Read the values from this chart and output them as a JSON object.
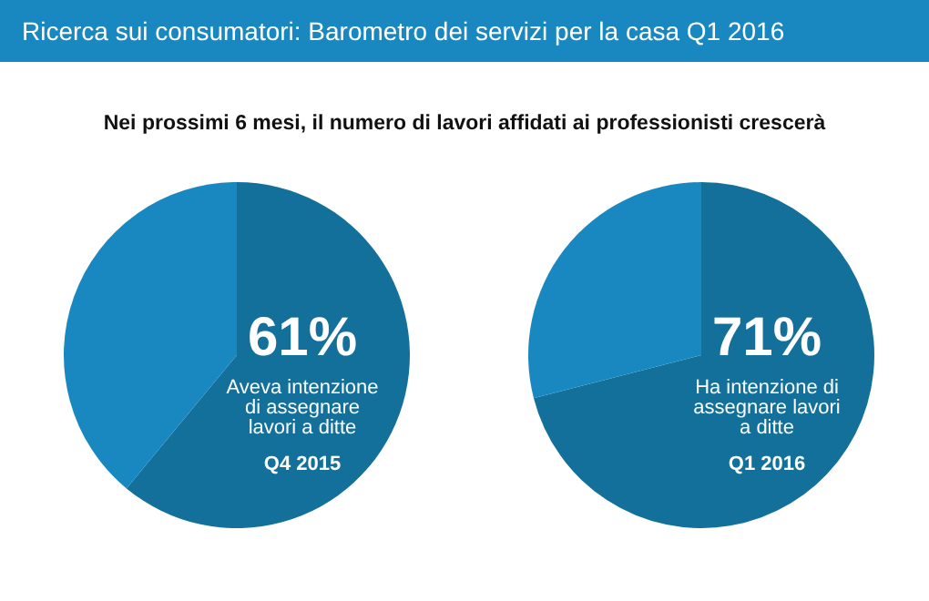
{
  "chart_data": [
    {
      "type": "pie",
      "title": "Ricerca sui consumatori: Barometro dei servizi per la casa Q1 2016",
      "subtitle": "Nei prossimi 6 mesi, il numero di lavori affidati ai professionisti crescerà",
      "categories": [
        null,
        null
      ],
      "values": [
        61,
        39
      ],
      "colors": [
        "#13709b",
        "#1a88c0"
      ],
      "value_labels": [
        "61%",
        null
      ],
      "annotations": [
        "Aveva intenzione di assegnare lavori a ditte",
        "Q4 2015"
      ]
    },
    {
      "type": "pie",
      "categories": [
        null,
        null
      ],
      "values": [
        71,
        29
      ],
      "colors": [
        "#13709b",
        "#1a88c0"
      ],
      "value_labels": [
        "71%",
        null
      ],
      "annotations": [
        "Ha intenzione di assegnare lavori a ditte",
        "Q1 2016"
      ]
    }
  ]
}
